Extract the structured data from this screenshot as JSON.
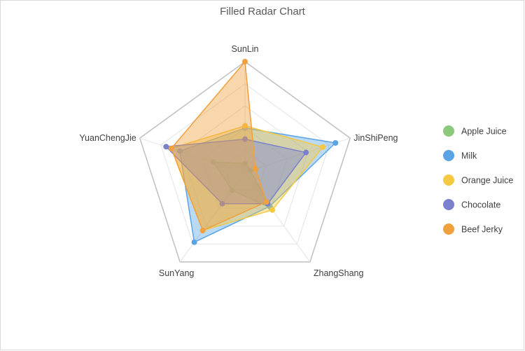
{
  "chart_data": {
    "type": "radar",
    "title": "Filled Radar Chart",
    "axes": [
      "SunLin",
      "JinShiPeng",
      "ZhangShang",
      "SunYang",
      "YuanChengJie"
    ],
    "range": [
      0,
      100
    ],
    "rings": 5,
    "grid": true,
    "legend_position": "right",
    "series": [
      {
        "name": "Apple Juice",
        "color": "#8cc97c",
        "values": [
          8,
          5,
          40,
          20,
          30
        ]
      },
      {
        "name": "Milk",
        "color": "#5aa4e6",
        "values": [
          40,
          86,
          38,
          78,
          62
        ]
      },
      {
        "name": "Orange Juice",
        "color": "#f5c842",
        "values": [
          42,
          74,
          42,
          65,
          70
        ]
      },
      {
        "name": "Chocolate",
        "color": "#7a80cc",
        "values": [
          30,
          58,
          35,
          35,
          75
        ]
      },
      {
        "name": "Beef Jerky",
        "color": "#f0a03c",
        "values": [
          100,
          10,
          33,
          65,
          70
        ]
      }
    ]
  }
}
